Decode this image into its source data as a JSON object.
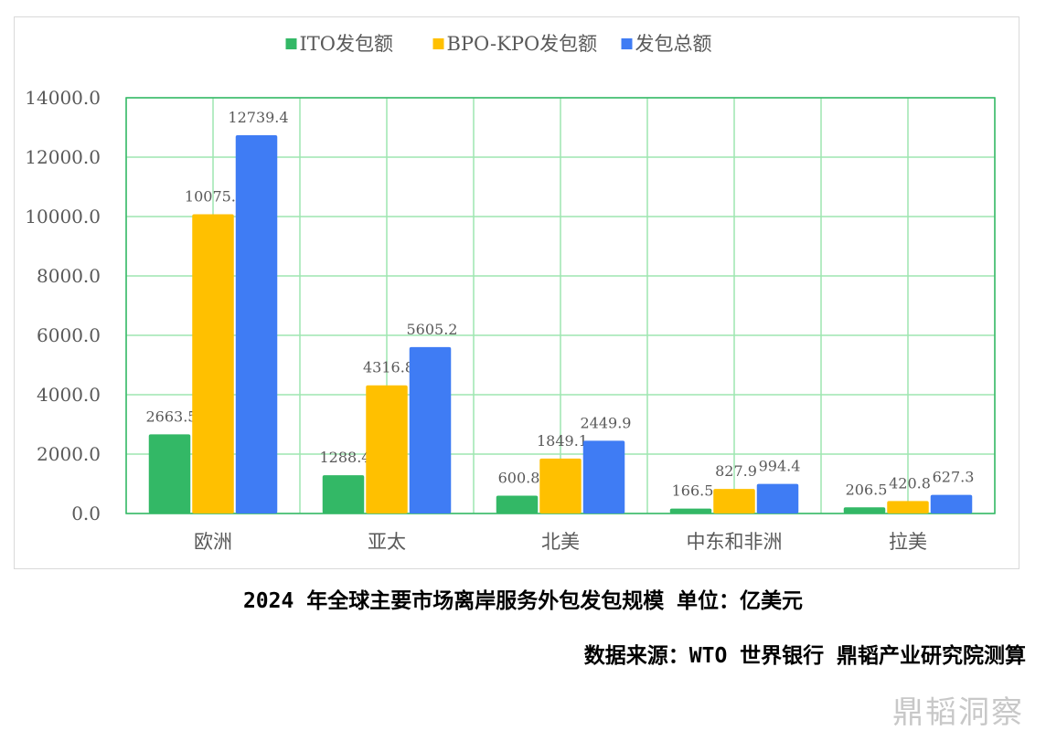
{
  "caption": "2024 年全球主要市场离岸服务外包发包规模 单位：亿美元",
  "source": "数据来源：WTO 世界银行 鼎韬产业研究院测算",
  "watermark": "鼎韬洞察",
  "chart_data": {
    "type": "bar",
    "categories": [
      "欧洲",
      "亚太",
      "北美",
      "中东和非洲",
      "拉美"
    ],
    "series": [
      {
        "name": "ITO发包额",
        "color": "#33b866",
        "values": [
          2663.5,
          1288.4,
          600.8,
          166.5,
          206.5
        ]
      },
      {
        "name": "BPO-KPO发包额",
        "color": "#ffc000",
        "values": [
          10075.9,
          4316.8,
          1849.1,
          827.9,
          420.8
        ]
      },
      {
        "name": "发包总额",
        "color": "#3f7cf4",
        "values": [
          12739.4,
          5605.2,
          2449.9,
          994.4,
          627.3
        ]
      }
    ],
    "ylim": [
      0,
      14000
    ],
    "yticks": [
      "0.0",
      "2000.0",
      "4000.0",
      "6000.0",
      "8000.0",
      "10000.0",
      "12000.0",
      "14000.0"
    ],
    "grid": true,
    "gridColor": "#9ee6b0",
    "legend": "top-center"
  }
}
